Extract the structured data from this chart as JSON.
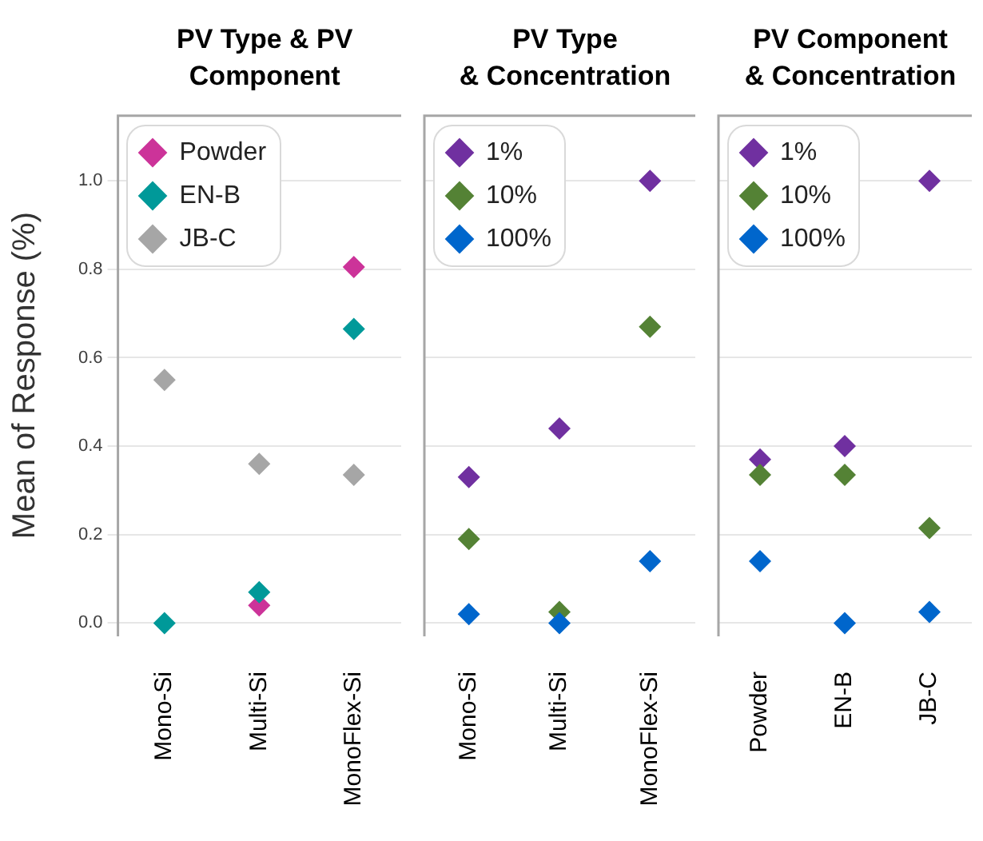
{
  "chart_data": [
    {
      "type": "scatter",
      "title": "PV Type & PV Component",
      "ylabel": "Mean of Response (%)",
      "categories": [
        "Mono-Si",
        "Multi-Si",
        "MonoFlex-Si"
      ],
      "ylim": [
        -0.03,
        1.15
      ],
      "yticks": [
        {
          "value": 0,
          "label": "0.0"
        },
        0.2,
        0.4,
        0.6,
        0.8,
        {
          "value": 1,
          "label": "1.0"
        }
      ],
      "grid": "y",
      "legend": "top left",
      "marker": "diamond",
      "series": [
        {
          "name": "Powder",
          "color": "#cc3399",
          "values": [
            null,
            0.04,
            0.805
          ]
        },
        {
          "name": "EN-B",
          "color": "#009999",
          "values": [
            0,
            0.07,
            0.665
          ]
        },
        {
          "name": "JB-C",
          "color": "#a6a6a6",
          "values": [
            0.55,
            0.36,
            0.335
          ]
        }
      ]
    },
    {
      "type": "scatter",
      "title": "PV Type\n& Concentration",
      "categories": [
        "Mono-Si",
        "Multi-Si",
        "MonoFlex-Si"
      ],
      "ylim": [
        -0.03,
        1.15
      ],
      "yticks": [
        0,
        0.2,
        0.4,
        0.6,
        0.8,
        1
      ],
      "tick_labels": "x",
      "grid": "y",
      "legend": "top left",
      "marker": "diamond",
      "series": [
        {
          "name": "1%",
          "color": "#7030a0",
          "values": [
            0.33,
            0.44,
            1.0
          ]
        },
        {
          "name": "10%",
          "color": "#548235",
          "values": [
            0.19,
            0.025,
            0.67
          ]
        },
        {
          "name": "100%",
          "color": "#0066cc",
          "values": [
            0.02,
            0.0,
            0.14
          ]
        }
      ]
    },
    {
      "type": "scatter",
      "title": "PV Component\n& Concentration",
      "categories": [
        "Powder",
        "EN-B",
        "JB-C"
      ],
      "ylim": [
        -0.03,
        1.15
      ],
      "yticks": [
        0,
        0.2,
        0.4,
        0.6,
        0.8,
        1
      ],
      "tick_labels": "x",
      "grid": "y",
      "legend": "top left",
      "marker": "diamond",
      "series": [
        {
          "name": "1%",
          "color": "#7030a0",
          "values": [
            0.37,
            0.4,
            1.0
          ]
        },
        {
          "name": "10%",
          "color": "#548235",
          "values": [
            0.335,
            0.335,
            0.215
          ]
        },
        {
          "name": "100%",
          "color": "#0066cc",
          "values": [
            0.14,
            0.0,
            0.025
          ]
        }
      ]
    }
  ]
}
